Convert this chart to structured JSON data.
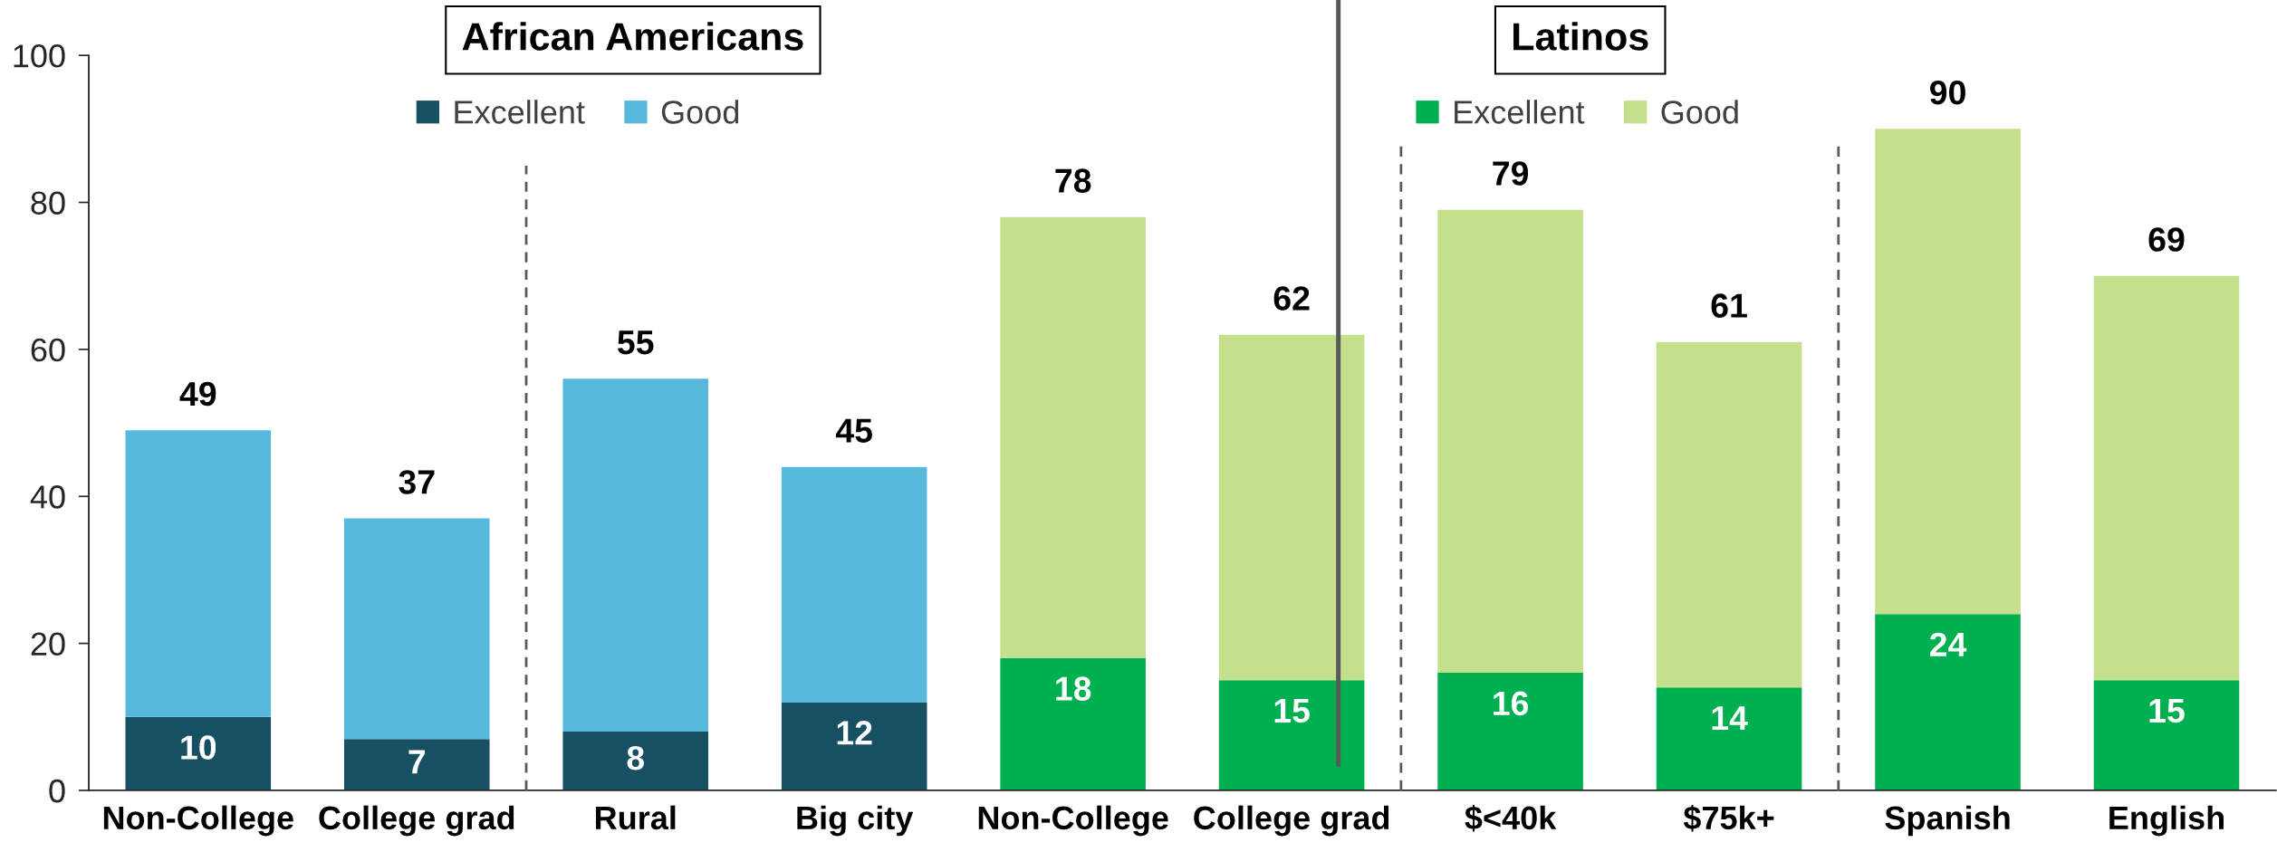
{
  "chart_data": {
    "type": "bar",
    "stacked": true,
    "categories": [
      "Non-College",
      "College grad",
      "Rural",
      "Big city",
      "Non-College",
      "College grad",
      "$<40k",
      "$75k+",
      "Spanish",
      "English"
    ],
    "series": [
      {
        "name": "Excellent",
        "color": "#174f63",
        "values": [
          10,
          7,
          8,
          12,
          null,
          null,
          null,
          null,
          null,
          null
        ],
        "value_labels": [
          "10",
          "7",
          "8",
          "12",
          null,
          null,
          null,
          null,
          null,
          null
        ]
      },
      {
        "name": "Good",
        "color": "#56b9dc",
        "values": [
          39,
          30,
          48,
          32,
          null,
          null,
          null,
          null,
          null,
          null
        ]
      },
      {
        "name": "Excellent",
        "color": "#00b050",
        "values": [
          null,
          null,
          null,
          null,
          18,
          15,
          16,
          14,
          24,
          15
        ],
        "value_labels": [
          null,
          null,
          null,
          null,
          "18",
          "15",
          "16",
          "14",
          "24",
          "15"
        ]
      },
      {
        "name": "Good",
        "color": "#c4e08c",
        "values": [
          null,
          null,
          null,
          null,
          60,
          47,
          63,
          47,
          66,
          55
        ]
      }
    ],
    "totals": [
      "49",
      "37",
      "55",
      "45",
      "78",
      "62",
      "79",
      "61",
      "90",
      "69"
    ],
    "ylim": [
      0,
      100
    ],
    "yticks": [
      0,
      20,
      40,
      60,
      80,
      100
    ],
    "legend": "top",
    "annotations": [
      "African Americans",
      "Latinos"
    ]
  }
}
